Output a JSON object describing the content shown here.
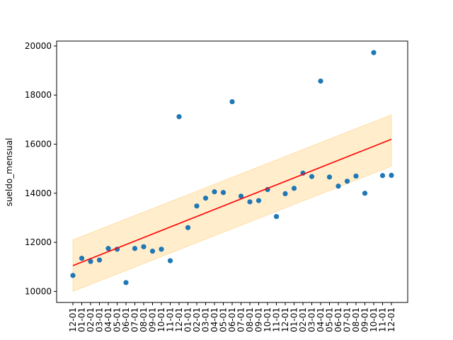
{
  "chart_data": {
    "type": "scatter",
    "title": "",
    "xlabel": "",
    "ylabel": "sueldo_mensual",
    "ylim": [
      9550,
      20200
    ],
    "yticks": [
      10000,
      12000,
      14000,
      16000,
      18000,
      20000
    ],
    "grid": false,
    "legend": "none",
    "x": [
      "12-01",
      "01-01",
      "02-01",
      "03-01",
      "04-01",
      "05-01",
      "06-01",
      "07-01",
      "08-01",
      "09-01",
      "10-01",
      "11-01",
      "12-01",
      "01-01",
      "02-01",
      "03-01",
      "04-01",
      "05-01",
      "06-01",
      "07-01",
      "08-01",
      "09-01",
      "10-01",
      "11-01",
      "12-01",
      "01-01",
      "02-01",
      "03-01",
      "04-01",
      "05-01",
      "06-01",
      "07-01",
      "08-01",
      "09-01",
      "10-01",
      "11-01",
      "12-01"
    ],
    "series": [
      {
        "kind": "points",
        "color": "#1f77b4",
        "values": [
          10650,
          11350,
          11220,
          11280,
          11750,
          11720,
          10360,
          11750,
          11820,
          11640,
          11720,
          11250,
          17120,
          12600,
          13480,
          13800,
          14060,
          14030,
          17730,
          13880,
          13650,
          13700,
          14150,
          13050,
          13980,
          14200,
          14820,
          14680,
          18570,
          14660,
          14290,
          14490,
          14700,
          14000,
          19730,
          14720,
          14730
        ]
      },
      {
        "kind": "trend-line",
        "color": "#ff0000",
        "start": 11050,
        "end": 16200
      },
      {
        "kind": "band",
        "color": "#ffa500",
        "lower_start": 10000,
        "lower_end": 15100,
        "upper_start": 12100,
        "upper_end": 17200
      }
    ]
  }
}
